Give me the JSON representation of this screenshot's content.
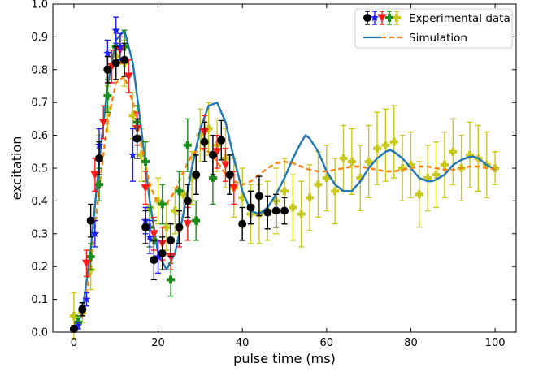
{
  "chart_data": {
    "type": "scatter",
    "title": "",
    "xlabel": "pulse time (ms)",
    "ylabel": "excitation",
    "xlim": [
      -5,
      105
    ],
    "ylim": [
      0,
      1.0
    ],
    "xticks": [
      0,
      20,
      40,
      60,
      80,
      100
    ],
    "yticks": [
      0.0,
      0.1,
      0.2,
      0.3,
      0.4,
      0.5,
      0.6,
      0.7,
      0.8,
      0.9,
      1.0
    ],
    "grid": false,
    "legend_position": "top-right",
    "legend": {
      "experimental_label": "Experimental data",
      "simulation_label": "Simulation"
    },
    "colors": {
      "black": "#000000",
      "blue": "#1f1fff",
      "red": "#ff1a1a",
      "green": "#1a8c1a",
      "olive": "#c8c81a",
      "sim_solid": "#1f77b4",
      "sim_dashed": "#ff7f0e"
    },
    "series": [
      {
        "name": "Experimental data",
        "marker": "circle",
        "color": "black",
        "points": [
          [
            0,
            0.01,
            0.01
          ],
          [
            2,
            0.07,
            0.02
          ],
          [
            4,
            0.34,
            0.05
          ],
          [
            6,
            0.53,
            0.05
          ],
          [
            8,
            0.8,
            0.04
          ],
          [
            10,
            0.82,
            0.05
          ],
          [
            12,
            0.83,
            0.05
          ],
          [
            15,
            0.59,
            0.06
          ],
          [
            17,
            0.32,
            0.05
          ],
          [
            19,
            0.22,
            0.06
          ],
          [
            21,
            0.24,
            0.05
          ],
          [
            23,
            0.28,
            0.05
          ],
          [
            25,
            0.32,
            0.05
          ],
          [
            27,
            0.4,
            0.05
          ],
          [
            29,
            0.48,
            0.06
          ],
          [
            31,
            0.58,
            0.06
          ],
          [
            33,
            0.54,
            0.06
          ],
          [
            35,
            0.585,
            0.06
          ],
          [
            37,
            0.48,
            0.06
          ],
          [
            40,
            0.33,
            0.05
          ],
          [
            42,
            0.38,
            0.05
          ],
          [
            44,
            0.415,
            0.06
          ],
          [
            46,
            0.365,
            0.05
          ],
          [
            48,
            0.37,
            0.05
          ],
          [
            50,
            0.37,
            0.04
          ]
        ]
      },
      {
        "marker": "star",
        "color": "blue",
        "points": [
          [
            1,
            0.02,
            0.01
          ],
          [
            3,
            0.1,
            0.02
          ],
          [
            5,
            0.3,
            0.04
          ],
          [
            6,
            0.57,
            0.05
          ],
          [
            8,
            0.85,
            0.04
          ],
          [
            10,
            0.92,
            0.04
          ],
          [
            11,
            0.87,
            0.04
          ],
          [
            14,
            0.54,
            0.08
          ],
          [
            17,
            0.34,
            0.04
          ],
          [
            18,
            0.29,
            0.05
          ],
          [
            20,
            0.23,
            0.05
          ]
        ]
      },
      {
        "marker": "triangle",
        "color": "red",
        "points": [
          [
            3,
            0.21,
            0.04
          ],
          [
            5,
            0.48,
            0.05
          ],
          [
            7,
            0.64,
            0.05
          ],
          [
            9,
            0.81,
            0.05
          ],
          [
            11,
            0.86,
            0.04
          ],
          [
            13,
            0.78,
            0.05
          ],
          [
            15,
            0.62,
            0.05
          ],
          [
            17,
            0.44,
            0.05
          ],
          [
            19,
            0.3,
            0.05
          ],
          [
            21,
            0.27,
            0.05
          ],
          [
            23,
            0.23,
            0.04
          ],
          [
            25,
            0.31,
            0.05
          ],
          [
            27,
            0.33,
            0.05
          ],
          [
            31,
            0.61,
            0.05
          ],
          [
            34,
            0.55,
            0.05
          ],
          [
            36,
            0.51,
            0.05
          ],
          [
            38,
            0.44,
            0.05
          ]
        ]
      },
      {
        "marker": "plus",
        "color": "green",
        "points": [
          [
            1,
            0.03,
            0.02
          ],
          [
            4,
            0.23,
            0.04
          ],
          [
            6,
            0.45,
            0.05
          ],
          [
            8,
            0.72,
            0.05
          ],
          [
            10,
            0.87,
            0.05
          ],
          [
            12,
            0.87,
            0.05
          ],
          [
            15,
            0.64,
            0.05
          ],
          [
            17,
            0.52,
            0.06
          ],
          [
            18,
            0.32,
            0.06
          ],
          [
            19,
            0.28,
            0.06
          ],
          [
            21,
            0.39,
            0.06
          ],
          [
            23,
            0.16,
            0.05
          ],
          [
            25,
            0.43,
            0.06
          ],
          [
            27,
            0.57,
            0.08
          ],
          [
            29,
            0.34,
            0.06
          ],
          [
            31,
            0.58,
            0.06
          ],
          [
            33,
            0.47,
            0.08
          ]
        ]
      },
      {
        "marker": "plus",
        "color": "olive",
        "points": [
          [
            0,
            0.05,
            0.07
          ],
          [
            2,
            0.06,
            0.03
          ],
          [
            4,
            0.19,
            0.06
          ],
          [
            6,
            0.53,
            0.07
          ],
          [
            8,
            0.68,
            0.07
          ],
          [
            10,
            0.84,
            0.07
          ],
          [
            12,
            0.82,
            0.07
          ],
          [
            14,
            0.66,
            0.07
          ],
          [
            16,
            0.54,
            0.08
          ],
          [
            18,
            0.38,
            0.07
          ],
          [
            20,
            0.4,
            0.07
          ],
          [
            22,
            0.32,
            0.07
          ],
          [
            24,
            0.37,
            0.07
          ],
          [
            26,
            0.42,
            0.07
          ],
          [
            28,
            0.47,
            0.08
          ],
          [
            30,
            0.6,
            0.08
          ],
          [
            32,
            0.62,
            0.08
          ],
          [
            34,
            0.57,
            0.08
          ],
          [
            36,
            0.53,
            0.09
          ],
          [
            38,
            0.44,
            0.09
          ],
          [
            40,
            0.41,
            0.09
          ],
          [
            42,
            0.36,
            0.09
          ],
          [
            44,
            0.36,
            0.09
          ],
          [
            46,
            0.37,
            0.09
          ],
          [
            48,
            0.4,
            0.1
          ],
          [
            50,
            0.43,
            0.1
          ],
          [
            52,
            0.38,
            0.1
          ],
          [
            54,
            0.36,
            0.1
          ],
          [
            56,
            0.41,
            0.1
          ],
          [
            58,
            0.45,
            0.1
          ],
          [
            60,
            0.47,
            0.1
          ],
          [
            62,
            0.43,
            0.1
          ],
          [
            64,
            0.53,
            0.1
          ],
          [
            66,
            0.52,
            0.1
          ],
          [
            68,
            0.47,
            0.1
          ],
          [
            70,
            0.52,
            0.11
          ],
          [
            72,
            0.56,
            0.11
          ],
          [
            74,
            0.57,
            0.11
          ],
          [
            76,
            0.58,
            0.11
          ],
          [
            78,
            0.5,
            0.1
          ],
          [
            80,
            0.51,
            0.1
          ],
          [
            82,
            0.42,
            0.1
          ],
          [
            84,
            0.47,
            0.1
          ],
          [
            86,
            0.48,
            0.1
          ],
          [
            88,
            0.51,
            0.1
          ],
          [
            90,
            0.55,
            0.1
          ],
          [
            92,
            0.5,
            0.1
          ],
          [
            94,
            0.54,
            0.1
          ],
          [
            96,
            0.53,
            0.1
          ],
          [
            98,
            0.51,
            0.1
          ],
          [
            100,
            0.5,
            0.05
          ]
        ]
      },
      {
        "name": "Simulation",
        "line": "solid",
        "color": "sim_solid",
        "points": [
          [
            0,
            0.0
          ],
          [
            2,
            0.06
          ],
          [
            4,
            0.25
          ],
          [
            6,
            0.52
          ],
          [
            8,
            0.75
          ],
          [
            10,
            0.89
          ],
          [
            12,
            0.92
          ],
          [
            14,
            0.82
          ],
          [
            16,
            0.62
          ],
          [
            18,
            0.4
          ],
          [
            20,
            0.24
          ],
          [
            22,
            0.19
          ],
          [
            24,
            0.24
          ],
          [
            26,
            0.36
          ],
          [
            28,
            0.5
          ],
          [
            30,
            0.62
          ],
          [
            32,
            0.69
          ],
          [
            34,
            0.7
          ],
          [
            36,
            0.64
          ],
          [
            38,
            0.53
          ],
          [
            40,
            0.43
          ],
          [
            42,
            0.37
          ],
          [
            44,
            0.36
          ],
          [
            46,
            0.38
          ],
          [
            48,
            0.42
          ],
          [
            50,
            0.47
          ],
          [
            52,
            0.53
          ],
          [
            54,
            0.58
          ],
          [
            55,
            0.6
          ],
          [
            56,
            0.59
          ],
          [
            58,
            0.55
          ],
          [
            60,
            0.49
          ],
          [
            62,
            0.45
          ],
          [
            64,
            0.43
          ],
          [
            65,
            0.43
          ],
          [
            66,
            0.43
          ],
          [
            68,
            0.46
          ],
          [
            70,
            0.5
          ],
          [
            72,
            0.53
          ],
          [
            74,
            0.55
          ],
          [
            75,
            0.555
          ],
          [
            76,
            0.55
          ],
          [
            78,
            0.53
          ],
          [
            80,
            0.5
          ],
          [
            82,
            0.47
          ],
          [
            84,
            0.46
          ],
          [
            85,
            0.46
          ],
          [
            86,
            0.465
          ],
          [
            88,
            0.48
          ],
          [
            90,
            0.51
          ],
          [
            92,
            0.525
          ],
          [
            94,
            0.535
          ],
          [
            95,
            0.535
          ],
          [
            96,
            0.53
          ],
          [
            98,
            0.51
          ],
          [
            100,
            0.495
          ]
        ]
      },
      {
        "line": "dashed",
        "color": "sim_dashed",
        "points": [
          [
            0,
            0.0
          ],
          [
            2,
            0.05
          ],
          [
            4,
            0.2
          ],
          [
            6,
            0.44
          ],
          [
            8,
            0.64
          ],
          [
            10,
            0.76
          ],
          [
            12,
            0.78
          ],
          [
            14,
            0.7
          ],
          [
            16,
            0.57
          ],
          [
            18,
            0.45
          ],
          [
            20,
            0.39
          ],
          [
            22,
            0.39
          ],
          [
            24,
            0.43
          ],
          [
            26,
            0.49
          ],
          [
            28,
            0.54
          ],
          [
            30,
            0.56
          ],
          [
            32,
            0.55
          ],
          [
            34,
            0.52
          ],
          [
            36,
            0.48
          ],
          [
            38,
            0.46
          ],
          [
            40,
            0.45
          ],
          [
            42,
            0.46
          ],
          [
            44,
            0.48
          ],
          [
            46,
            0.5
          ],
          [
            48,
            0.515
          ],
          [
            50,
            0.52
          ],
          [
            52,
            0.515
          ],
          [
            54,
            0.505
          ],
          [
            56,
            0.495
          ],
          [
            58,
            0.49
          ],
          [
            60,
            0.49
          ],
          [
            62,
            0.495
          ],
          [
            64,
            0.5
          ],
          [
            66,
            0.505
          ],
          [
            68,
            0.505
          ],
          [
            70,
            0.5
          ],
          [
            72,
            0.495
          ],
          [
            74,
            0.49
          ],
          [
            76,
            0.49
          ],
          [
            78,
            0.495
          ],
          [
            80,
            0.5
          ],
          [
            82,
            0.505
          ],
          [
            84,
            0.505
          ],
          [
            86,
            0.5
          ],
          [
            88,
            0.495
          ],
          [
            90,
            0.495
          ],
          [
            92,
            0.5
          ],
          [
            94,
            0.505
          ],
          [
            96,
            0.505
          ],
          [
            98,
            0.5
          ],
          [
            100,
            0.497
          ]
        ]
      }
    ]
  }
}
